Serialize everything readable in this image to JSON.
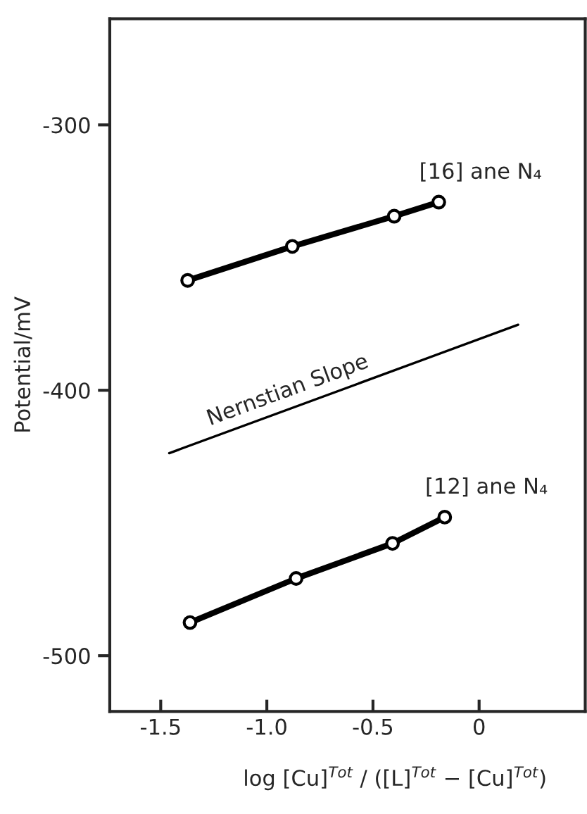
{
  "chart_data": {
    "type": "line",
    "xlabel": "log [Cu]$^{Tot}$ / ([L]$^{Tot}$ − [Cu]$^{Tot}$)",
    "ylabel": "Potential/mV",
    "series": [
      {
        "name": "[16] ane N₄",
        "color": "#000000",
        "marker": "circle",
        "x": [
          -1.373,
          -0.88,
          -0.4,
          -0.19
        ],
        "values": [
          -358.6,
          -345.8,
          -334.4,
          -329.1
        ]
      },
      {
        "name": "Nernstian Slope",
        "color": "#000000",
        "marker": "none",
        "x": [
          -1.46,
          0.184
        ],
        "values": [
          -423.7,
          -375.3
        ]
      },
      {
        "name": "[12] ane N₄",
        "color": "#000000",
        "marker": "circle",
        "x": [
          -1.362,
          -0.862,
          -0.408,
          -0.162
        ],
        "values": [
          -487.5,
          -470.9,
          -457.7,
          -447.8
        ]
      }
    ],
    "xlim": [
      -1.74,
      0.5
    ],
    "ylim": [
      -521,
      -260
    ],
    "xticks": [
      {
        "value": -1.5,
        "label": "-1.5"
      },
      {
        "value": -1.0,
        "label": "-1.0"
      },
      {
        "value": -0.5,
        "label": "-0.5"
      },
      0
    ],
    "yticks": [
      {
        "value": -300,
        "label": "-300"
      },
      {
        "value": -400,
        "label": "-400"
      },
      {
        "value": -500,
        "label": "-500"
      }
    ],
    "grid": false,
    "legend": false
  }
}
